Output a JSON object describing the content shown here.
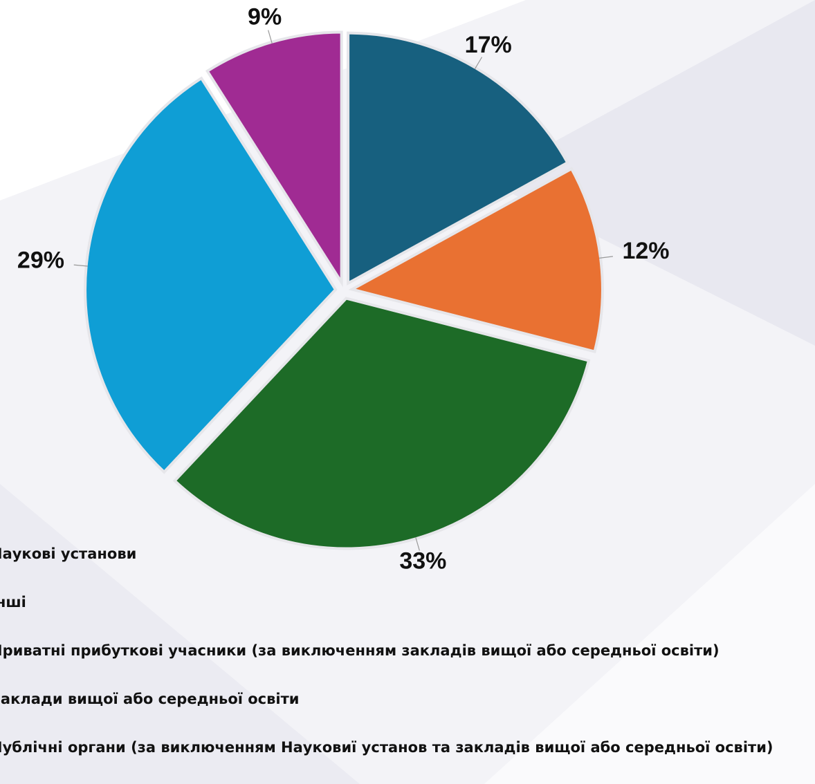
{
  "chart_data": {
    "type": "pie",
    "categories": [
      "Наукові установи",
      "Інші",
      "Приватні прибуткові учасники (за виключенням закладів вищої або середньої освіти)",
      "Заклади вищої або середньої освіти",
      "Публічні органи (за виключенням Науковиї установ та закладів вищої або середньої освіти)"
    ],
    "values": [
      17,
      12,
      33,
      29,
      9
    ],
    "value_labels": [
      "17%",
      "12%",
      "33%",
      "29%",
      "9%"
    ],
    "colors": [
      "#17607f",
      "#e97132",
      "#1d6b27",
      "#0f9ed5",
      "#a02b93"
    ]
  }
}
